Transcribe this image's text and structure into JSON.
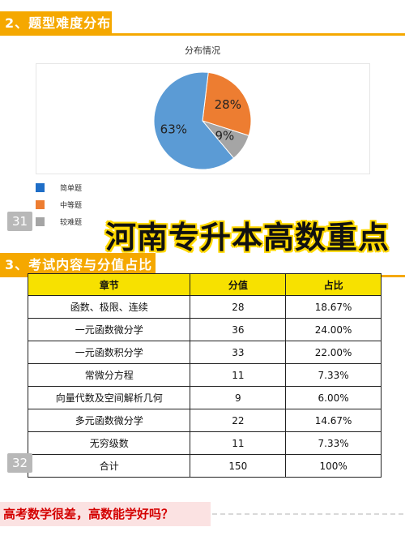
{
  "section2": {
    "title": "2、题型难度分布"
  },
  "chart_data": {
    "type": "pie",
    "title": "分布情况",
    "slices": [
      {
        "label": "简单题",
        "value": 63,
        "display": "63%",
        "color": "#5b9bd5"
      },
      {
        "label": "中等题",
        "value": 28,
        "display": "28%",
        "color": "#ed7d31"
      },
      {
        "label": "较难题",
        "value": 9,
        "display": "9%",
        "color": "#a5a5a5"
      }
    ],
    "legend_position": "bottom-left"
  },
  "legend": {
    "items": [
      {
        "label": "简单题",
        "color": "#1f6ec7"
      },
      {
        "label": "中等题",
        "color": "#ed7d31"
      },
      {
        "label": "较难题",
        "color": "#a5a5a5"
      }
    ]
  },
  "page_numbers": {
    "first": "31",
    "second": "32"
  },
  "overlay_title": "河南专升本高数重点",
  "section3": {
    "title": "3、考试内容与分值占比"
  },
  "table": {
    "headers": [
      "章节",
      "分值",
      "占比"
    ],
    "rows": [
      [
        "函数、极限、连续",
        "28",
        "18.67%"
      ],
      [
        "一元函数微分学",
        "36",
        "24.00%"
      ],
      [
        "一元函数积分学",
        "33",
        "22.00%"
      ],
      [
        "常微分方程",
        "11",
        "7.33%"
      ],
      [
        "向量代数及空间解析几何",
        "9",
        "6.00%"
      ],
      [
        "多元函数微分学",
        "22",
        "14.67%"
      ],
      [
        "无穷级数",
        "11",
        "7.33%"
      ],
      [
        "合计",
        "150",
        "100%"
      ]
    ]
  },
  "bottom_banner": "高考数学很差，高数能学好吗？"
}
